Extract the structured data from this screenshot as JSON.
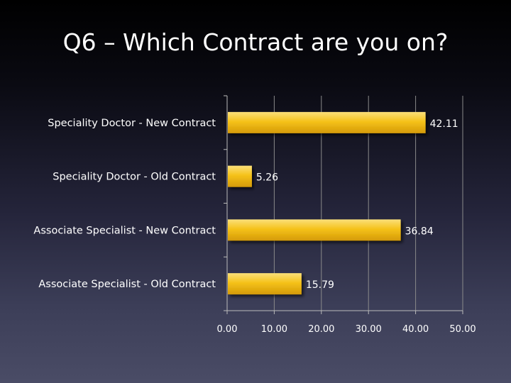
{
  "slide": {
    "title": "Q6 – Which Contract are you on?"
  },
  "colors": {
    "bar_top": "#fbe07a",
    "bar_mid": "#f5c21a",
    "bar_bottom": "#d49a06",
    "grid": "#8a8a8a",
    "axis": "#bbbbbb",
    "text": "#ffffff"
  },
  "chart_data": {
    "type": "bar",
    "orientation": "horizontal",
    "title": "Q6 – Which Contract are you on?",
    "categories": [
      "Speciality Doctor - New Contract",
      "Speciality Doctor - Old Contract",
      "Associate Specialist - New Contract",
      "Associate Specialist - Old Contract"
    ],
    "values": [
      42.11,
      5.26,
      36.84,
      15.79
    ],
    "value_labels": [
      "42.11",
      "5.26",
      "36.84",
      "15.79"
    ],
    "xlim": [
      0,
      50
    ],
    "xticks": [
      "0.00",
      "10.00",
      "20.00",
      "30.00",
      "40.00",
      "50.00"
    ],
    "xlabel": "",
    "ylabel": "",
    "grid": true,
    "legend": "none"
  }
}
